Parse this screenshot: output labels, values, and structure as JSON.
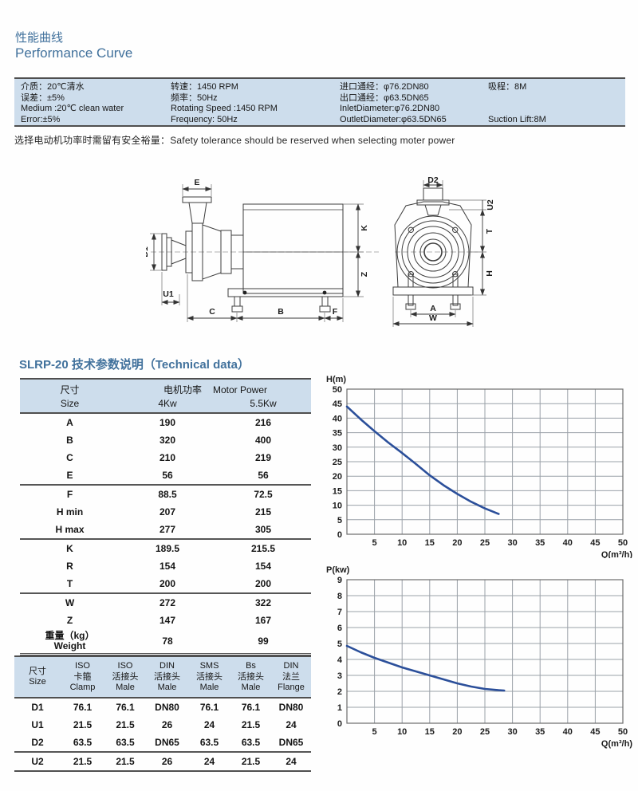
{
  "page": {
    "title_zh": "性能曲线",
    "title_en": "Performance Curve",
    "note": "选择电动机功率时需留有安全裕量：Safety tolerance should be reserved when selecting moter power",
    "section_title": "SLRP-20 技术参数说明（Technical data）"
  },
  "colors": {
    "accent": "#41719c",
    "table_header_bg": "#cdddec",
    "rule": "#4f4f4f",
    "curve": "#2b4f9a",
    "grid": "#9aa1a8"
  },
  "spec_table": {
    "columns": [
      {
        "lines": [
          "介质：20℃清水",
          "误差：±5%",
          "Medium :20℃ clean water",
          "Error:±5%"
        ]
      },
      {
        "lines": [
          "转速：1450 RPM",
          "频率：50Hz",
          "Rotating Speed :1450 RPM",
          "Frequency: 50Hz"
        ]
      },
      {
        "lines": [
          "进口通经：φ76.2DN80",
          "出口通经：φ63.5DN65",
          "InletDiameter:φ76.2DN80",
          "OutletDiameter:φ63.5DN65"
        ]
      },
      {
        "lines": [
          "吸程：8M",
          "",
          "",
          "Suction Lift:8M"
        ]
      }
    ]
  },
  "drawing": {
    "side_labels": {
      "e": "E",
      "d1": "D1",
      "u1": "U1",
      "k": "K",
      "z": "Z",
      "c": "C",
      "b": "B",
      "f": "F"
    },
    "front_labels": {
      "d2": "D2",
      "u2": "U2",
      "t": "T",
      "h": "H",
      "a": "A",
      "w": "W"
    }
  },
  "tech_table": {
    "header": {
      "size_zh": "尺寸",
      "size_en": "Size",
      "motor_zh": "电机功率",
      "motor_en": "Motor Power",
      "power1": "4Kw",
      "power2": "5.5Kw"
    },
    "groups": [
      {
        "rows": [
          {
            "label": "A",
            "v1": "190",
            "v2": "216"
          },
          {
            "label": "B",
            "v1": "320",
            "v2": "400"
          },
          {
            "label": "C",
            "v1": "210",
            "v2": "219"
          },
          {
            "label": "E",
            "v1": "56",
            "v2": "56"
          }
        ]
      },
      {
        "rows": [
          {
            "label": "F",
            "v1": "88.5",
            "v2": "72.5"
          },
          {
            "label": "H min",
            "v1": "207",
            "v2": "215"
          },
          {
            "label": "H max",
            "v1": "277",
            "v2": "305"
          }
        ]
      },
      {
        "rows": [
          {
            "label": "K",
            "v1": "189.5",
            "v2": "215.5"
          },
          {
            "label": "R",
            "v1": "154",
            "v2": "154"
          },
          {
            "label": "T",
            "v1": "200",
            "v2": "200"
          }
        ]
      },
      {
        "rows": [
          {
            "label": "W",
            "v1": "272",
            "v2": "322"
          },
          {
            "label": "Z",
            "v1": "147",
            "v2": "167"
          },
          {
            "label": "重量（kg）",
            "label2": "Weight",
            "v1": "78",
            "v2": "99"
          }
        ]
      }
    ]
  },
  "conn_table": {
    "headers": [
      [
        "尺寸",
        "Size"
      ],
      [
        "ISO",
        "卡箍",
        "Clamp"
      ],
      [
        "ISO",
        "活接头",
        "Male"
      ],
      [
        "DIN",
        "活接头",
        "Male"
      ],
      [
        "SMS",
        "活接头",
        "Male"
      ],
      [
        "Bs",
        "活接头",
        "Male"
      ],
      [
        "DIN",
        "法兰",
        "Flange"
      ]
    ],
    "rows": [
      [
        "D1",
        "76.1",
        "76.1",
        "DN80",
        "76.1",
        "76.1",
        "DN80"
      ],
      [
        "U1",
        "21.5",
        "21.5",
        "26",
        "24",
        "21.5",
        "24"
      ],
      [
        "D2",
        "63.5",
        "63.5",
        "DN65",
        "63.5",
        "63.5",
        "DN65"
      ],
      [
        "U2",
        "21.5",
        "21.5",
        "26",
        "24",
        "21.5",
        "24"
      ]
    ]
  },
  "chart_data": [
    {
      "type": "line",
      "title": "",
      "ylabel": "H(m)",
      "xlabel": "Q(m³/h)",
      "xlim": [
        0,
        50
      ],
      "ylim": [
        0,
        50
      ],
      "xstep": 5,
      "ystep": 5,
      "grid": true,
      "legend": "none",
      "line_color": "#2b4f9a",
      "series": [
        {
          "name": "Head vs Flow",
          "x": [
            0,
            2.5,
            5,
            7.5,
            10,
            12.5,
            15,
            17.5,
            20,
            22.5,
            25,
            27.5
          ],
          "y": [
            44,
            39.6,
            35.5,
            31.6,
            28,
            24.2,
            20.3,
            16.9,
            13.9,
            11.2,
            8.9,
            7
          ]
        }
      ]
    },
    {
      "type": "line",
      "title": "",
      "ylabel": "P(kw)",
      "xlabel": "Q(m³/h)",
      "xlim": [
        0,
        50
      ],
      "ylim": [
        0,
        9
      ],
      "xstep": 5,
      "ystep": 1,
      "grid": true,
      "legend": "none",
      "line_color": "#2b4f9a",
      "series": [
        {
          "name": "Power vs Flow",
          "x": [
            0,
            2.5,
            5,
            7.5,
            10,
            12.5,
            15,
            17.5,
            20,
            22.5,
            25,
            27.5,
            28.5
          ],
          "y": [
            4.85,
            4.45,
            4.1,
            3.8,
            3.5,
            3.25,
            3.0,
            2.75,
            2.5,
            2.3,
            2.15,
            2.07,
            2.05
          ]
        }
      ]
    }
  ]
}
